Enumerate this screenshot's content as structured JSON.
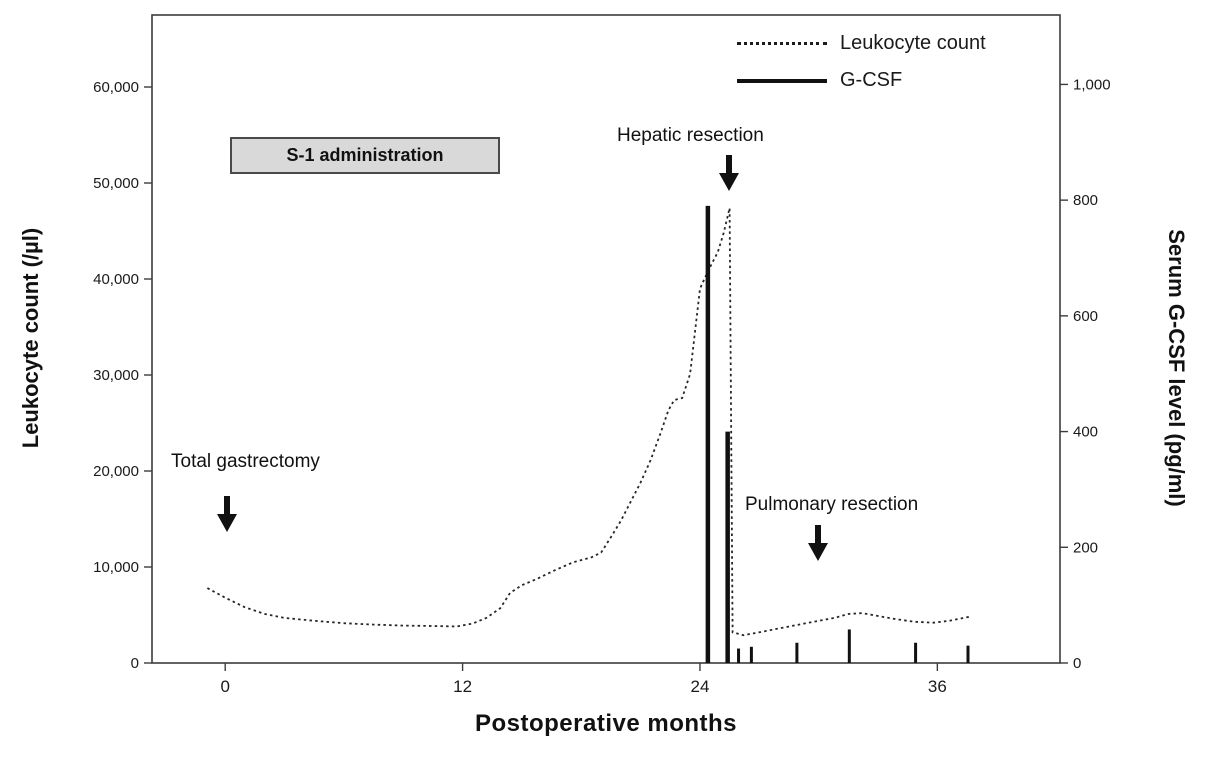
{
  "chart_data": {
    "type": "line",
    "title": "",
    "xlabel": "Postoperative months",
    "ylabel_left": "Leukocyte count (/µl)",
    "ylabel_right": "Serum G-CSF level (pg/ml)",
    "xlim": [
      -3.7,
      42.2
    ],
    "x_ticks": [
      0,
      12,
      24,
      36
    ],
    "ylim_left": [
      0,
      67500
    ],
    "y_ticks_left": [
      0,
      10000,
      20000,
      30000,
      40000,
      50000,
      60000
    ],
    "ylim_right": [
      0,
      1120
    ],
    "y_ticks_right": [
      0,
      200,
      400,
      600,
      800,
      1000
    ],
    "grid": false,
    "legend_position": "top-right",
    "colors": {
      "line": "#262626",
      "bars": "#111111",
      "frame": "#3c3c3c",
      "tick_text": "#1a1a1a"
    },
    "series": [
      {
        "name": "Leukocyte count",
        "type": "line",
        "line_style": "dotted",
        "axis": "left",
        "points": [
          [
            -0.9,
            7800
          ],
          [
            0,
            6800
          ],
          [
            1,
            5800
          ],
          [
            2,
            5100
          ],
          [
            3,
            4700
          ],
          [
            4.5,
            4400
          ],
          [
            6,
            4150
          ],
          [
            7.5,
            4000
          ],
          [
            9,
            3900
          ],
          [
            10.5,
            3850
          ],
          [
            11.7,
            3800
          ],
          [
            12.5,
            4100
          ],
          [
            13.2,
            4700
          ],
          [
            13.9,
            5700
          ],
          [
            14.4,
            7300
          ],
          [
            15,
            8100
          ],
          [
            15.8,
            8800
          ],
          [
            16.7,
            9700
          ],
          [
            17.6,
            10500
          ],
          [
            18.5,
            11000
          ],
          [
            19,
            11500
          ],
          [
            19.5,
            13100
          ],
          [
            20,
            14800
          ],
          [
            20.5,
            16800
          ],
          [
            21,
            18800
          ],
          [
            21.5,
            21100
          ],
          [
            22,
            23900
          ],
          [
            22.4,
            26300
          ],
          [
            22.7,
            27400
          ],
          [
            23.1,
            27600
          ],
          [
            23.5,
            30100
          ],
          [
            24,
            39000
          ],
          [
            24.4,
            40800
          ],
          [
            24.9,
            42800
          ],
          [
            25.2,
            44800
          ],
          [
            25.5,
            47400
          ],
          [
            25.65,
            3200
          ],
          [
            26.2,
            2900
          ],
          [
            27,
            3200
          ],
          [
            28,
            3600
          ],
          [
            29,
            4000
          ],
          [
            30,
            4400
          ],
          [
            30.8,
            4700
          ],
          [
            31.5,
            5100
          ],
          [
            32.2,
            5200
          ],
          [
            33,
            4900
          ],
          [
            33.8,
            4600
          ],
          [
            34.8,
            4300
          ],
          [
            35.8,
            4200
          ],
          [
            36.6,
            4400
          ],
          [
            37.6,
            4800
          ]
        ]
      },
      {
        "name": "G-CSF",
        "type": "bars",
        "axis": "right",
        "points": [
          [
            24.4,
            790
          ],
          [
            25.4,
            400
          ],
          [
            25.95,
            25
          ],
          [
            26.6,
            28
          ],
          [
            28.9,
            35
          ],
          [
            31.55,
            58
          ],
          [
            34.9,
            35
          ],
          [
            37.55,
            30
          ]
        ]
      }
    ],
    "annotations": [
      {
        "text": "Total gastrectomy",
        "style": "arrow-down",
        "month": 0
      },
      {
        "text": "S-1 administration",
        "style": "shaded-box",
        "month_span": [
          0.3,
          13.7
        ]
      },
      {
        "text": "Hepatic resection",
        "style": "arrow-down",
        "month": 25.4
      },
      {
        "text": "Pulmonary resection",
        "style": "arrow-down",
        "month": 29.9
      }
    ]
  }
}
